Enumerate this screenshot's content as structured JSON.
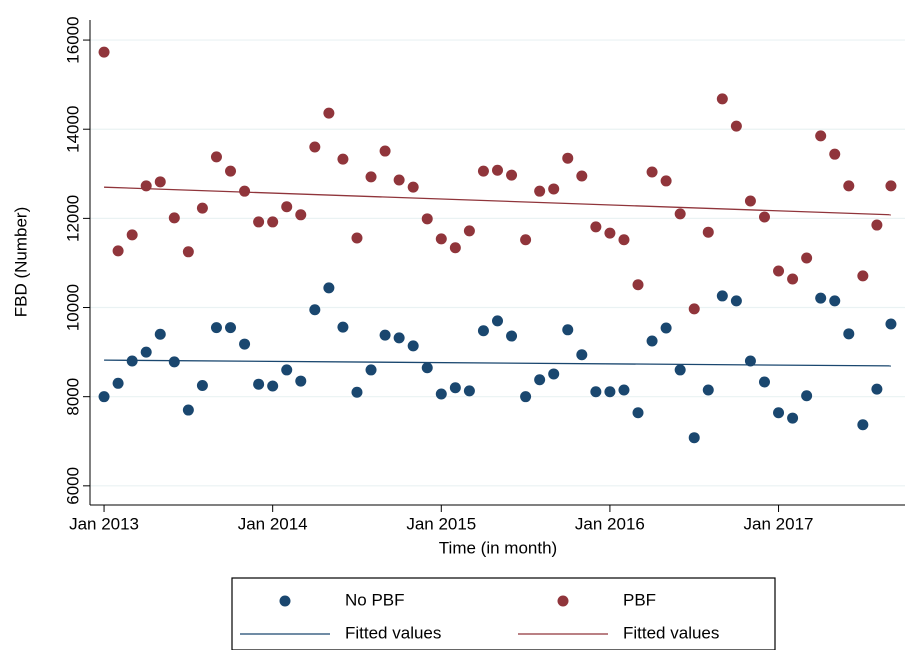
{
  "chart_data": {
    "type": "scatter",
    "x_label": "Time (in month)",
    "y_label": "FBD (Number)",
    "x": [
      "2013-01",
      "2013-02",
      "2013-03",
      "2013-04",
      "2013-05",
      "2013-06",
      "2013-07",
      "2013-08",
      "2013-09",
      "2013-10",
      "2013-11",
      "2013-12",
      "2014-01",
      "2014-02",
      "2014-03",
      "2014-04",
      "2014-05",
      "2014-06",
      "2014-07",
      "2014-08",
      "2014-09",
      "2014-10",
      "2014-11",
      "2014-12",
      "2015-01",
      "2015-02",
      "2015-03",
      "2015-04",
      "2015-05",
      "2015-06",
      "2015-07",
      "2015-08",
      "2015-09",
      "2015-10",
      "2015-11",
      "2015-12",
      "2016-01",
      "2016-02",
      "2016-03",
      "2016-04",
      "2016-05",
      "2016-06",
      "2016-07",
      "2016-08",
      "2016-09",
      "2016-10",
      "2016-11",
      "2016-12",
      "2017-01",
      "2017-02",
      "2017-03",
      "2017-04",
      "2017-05",
      "2017-06",
      "2017-07",
      "2017-08",
      "2017-09"
    ],
    "series": [
      {
        "name": "No PBF",
        "color": "#1a476f",
        "mark": "dot",
        "values": [
          8000,
          8300,
          8800,
          9000,
          9400,
          8780,
          7700,
          8250,
          9550,
          9550,
          9180,
          8280,
          8240,
          8600,
          8350,
          9950,
          10440,
          9560,
          8100,
          8600,
          9380,
          9320,
          9140,
          8650,
          8060,
          8200,
          8130,
          9480,
          9700,
          9360,
          8000,
          8380,
          8510,
          9500,
          8940,
          8110,
          8110,
          8150,
          7640,
          9250,
          9540,
          8600,
          7080,
          8150,
          10260,
          10150,
          8800,
          8330,
          7640,
          7520,
          8020,
          10210,
          10150,
          9410,
          7370,
          8170,
          9630
        ]
      },
      {
        "name": "PBF",
        "color": "#90353b",
        "mark": "dot",
        "values": [
          15730,
          11270,
          11630,
          12730,
          12820,
          12010,
          11250,
          12230,
          13380,
          13060,
          12610,
          11920,
          11920,
          12260,
          12080,
          13600,
          14360,
          13330,
          11560,
          12930,
          13510,
          12860,
          12700,
          11990,
          11540,
          11340,
          11720,
          13060,
          13080,
          12970,
          11520,
          12610,
          12660,
          13350,
          12950,
          11810,
          11670,
          11520,
          10510,
          13040,
          12840,
          12100,
          9970,
          11690,
          14680,
          14070,
          12390,
          12030,
          10820,
          10640,
          11110,
          13850,
          13440,
          12730,
          10710,
          11850,
          12730
        ]
      },
      {
        "name": "Fitted values",
        "color": "#1a476f",
        "mark": "line",
        "x": [
          "2013-01",
          "2017-09"
        ],
        "values": [
          8820,
          8690
        ]
      },
      {
        "name": "Fitted values",
        "color": "#90353b",
        "mark": "line",
        "x": [
          "2013-01",
          "2017-09"
        ],
        "values": [
          12700,
          12080
        ]
      }
    ],
    "xlim": [
      "2012-12",
      "2017-10"
    ],
    "xticks": [
      {
        "value": "2013-01",
        "label": "Jan 2013"
      },
      {
        "value": "2014-01",
        "label": "Jan 2014"
      },
      {
        "value": "2015-01",
        "label": "Jan 2015"
      },
      {
        "value": "2016-01",
        "label": "Jan 2016"
      },
      {
        "value": "2017-01",
        "label": "Jan 2017"
      }
    ],
    "ylim": [
      5570,
      16450
    ],
    "yticks": [
      6000,
      8000,
      10000,
      12000,
      14000,
      16000
    ],
    "grid": true
  }
}
